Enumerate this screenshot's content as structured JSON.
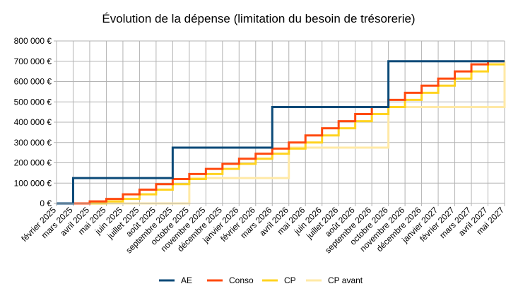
{
  "chart_data": {
    "type": "line",
    "step": true,
    "title": "Évolution de la dépense (limitation du besoin de trésorerie)",
    "xlabel": "",
    "ylabel": "",
    "categories": [
      "février 2025",
      "mars 2025",
      "avril 2025",
      "mai 2025",
      "juin 2025",
      "juillet 2025",
      "août 2025",
      "septembre 2025",
      "octobre 2025",
      "novembre 2025",
      "décembre 2025",
      "janvier 2026",
      "février 2026",
      "mars 2026",
      "avril 2026",
      "mai 2026",
      "juin 2026",
      "juillet 2026",
      "août 2026",
      "septembre 2026",
      "octobre 2026",
      "novembre 2026",
      "décembre 2026",
      "janvier 2027",
      "février 2027",
      "mars 2027",
      "avril 2027",
      "mai 2027"
    ],
    "ylim": [
      0,
      800000
    ],
    "yticks": [
      0,
      100000,
      200000,
      300000,
      400000,
      500000,
      600000,
      700000,
      800000
    ],
    "ytick_labels": [
      "0 €",
      "100 000 €",
      "200 000 €",
      "300 000 €",
      "400 000 €",
      "500 000 €",
      "600 000 €",
      "700 000 €",
      "800 000 €"
    ],
    "grid": true,
    "legend_position": "bottom",
    "series": [
      {
        "name": "AE",
        "color": "#0b4a78",
        "values": [
          0,
          125000,
          125000,
          125000,
          125000,
          125000,
          125000,
          275000,
          275000,
          275000,
          275000,
          275000,
          275000,
          475000,
          475000,
          475000,
          475000,
          475000,
          475000,
          475000,
          700000,
          700000,
          700000,
          700000,
          700000,
          700000,
          700000,
          700000
        ]
      },
      {
        "name": "Conso",
        "color": "#ff4a0f",
        "values": [
          0,
          0,
          10000,
          22000,
          45000,
          68000,
          95000,
          120000,
          145000,
          170000,
          195000,
          220000,
          245000,
          270000,
          300000,
          335000,
          370000,
          405000,
          440000,
          475000,
          510000,
          545000,
          580000,
          615000,
          650000,
          685000,
          700000,
          700000
        ]
      },
      {
        "name": "CP",
        "color": "#ffd320",
        "values": [
          0,
          0,
          0,
          10000,
          22000,
          45000,
          68000,
          95000,
          120000,
          145000,
          170000,
          195000,
          220000,
          245000,
          270000,
          300000,
          335000,
          370000,
          405000,
          440000,
          475000,
          510000,
          545000,
          580000,
          615000,
          650000,
          685000,
          685000
        ]
      },
      {
        "name": "CP avant",
        "color": "#ffe9a6",
        "values": [
          0,
          0,
          0,
          0,
          0,
          0,
          0,
          0,
          125000,
          125000,
          125000,
          125000,
          125000,
          125000,
          275000,
          275000,
          275000,
          275000,
          275000,
          275000,
          475000,
          475000,
          475000,
          475000,
          475000,
          475000,
          475000,
          700000
        ]
      }
    ]
  }
}
